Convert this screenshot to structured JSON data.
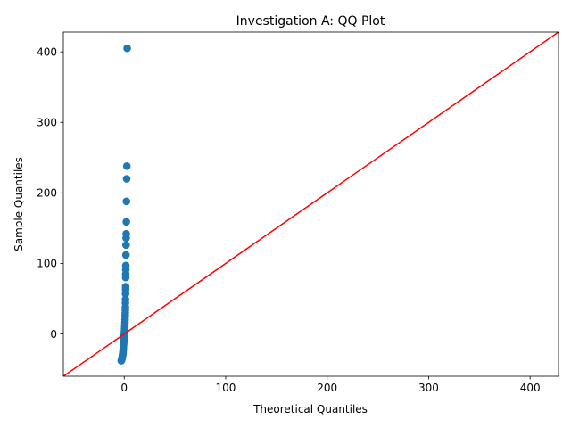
{
  "chart_data": {
    "type": "scatter",
    "title": "Investigation A: QQ Plot",
    "xlabel": "Theoretical Quantiles",
    "ylabel": "Sample Quantiles",
    "xlim": [
      -60,
      428
    ],
    "ylim": [
      -60,
      428
    ],
    "xticks": [
      0,
      100,
      200,
      300,
      400
    ],
    "yticks": [
      0,
      100,
      200,
      300,
      400
    ],
    "grid": false,
    "legend": "none",
    "marker_color": "#1f77b4",
    "reference_line": {
      "slope": 1,
      "intercept": 0,
      "color": "#ff0000"
    },
    "points": [
      {
        "x": 2.9,
        "y": 405
      },
      {
        "x": 2.6,
        "y": 238
      },
      {
        "x": 2.4,
        "y": 220
      },
      {
        "x": 2.2,
        "y": 188
      },
      {
        "x": 2.1,
        "y": 159
      },
      {
        "x": 2.0,
        "y": 142
      },
      {
        "x": 1.9,
        "y": 136
      },
      {
        "x": 1.8,
        "y": 126
      },
      {
        "x": 1.7,
        "y": 112
      },
      {
        "x": 1.6,
        "y": 97
      },
      {
        "x": 1.55,
        "y": 91
      },
      {
        "x": 1.5,
        "y": 85
      },
      {
        "x": 1.45,
        "y": 80
      },
      {
        "x": 1.4,
        "y": 67
      },
      {
        "x": 1.35,
        "y": 63
      },
      {
        "x": 1.3,
        "y": 57
      },
      {
        "x": 1.25,
        "y": 49
      },
      {
        "x": 1.2,
        "y": 44
      },
      {
        "x": 1.15,
        "y": 38
      },
      {
        "x": 1.1,
        "y": 34
      },
      {
        "x": 1.05,
        "y": 30
      },
      {
        "x": 1.0,
        "y": 27
      },
      {
        "x": 0.9,
        "y": 24
      },
      {
        "x": 0.8,
        "y": 20
      },
      {
        "x": 0.7,
        "y": 16
      },
      {
        "x": 0.6,
        "y": 13
      },
      {
        "x": 0.5,
        "y": 10
      },
      {
        "x": 0.4,
        "y": 7
      },
      {
        "x": 0.3,
        "y": 4
      },
      {
        "x": 0.2,
        "y": 2
      },
      {
        "x": 0.1,
        "y": 0
      },
      {
        "x": 0.0,
        "y": -2
      },
      {
        "x": -0.1,
        "y": -4
      },
      {
        "x": -0.2,
        "y": -6
      },
      {
        "x": -0.3,
        "y": -8
      },
      {
        "x": -0.4,
        "y": -10
      },
      {
        "x": -0.5,
        "y": -12
      },
      {
        "x": -0.6,
        "y": -14
      },
      {
        "x": -0.7,
        "y": -16
      },
      {
        "x": -0.8,
        "y": -18
      },
      {
        "x": -0.9,
        "y": -20
      },
      {
        "x": -1.0,
        "y": -22
      },
      {
        "x": -1.1,
        "y": -24
      },
      {
        "x": -1.2,
        "y": -26
      },
      {
        "x": -1.3,
        "y": -27
      },
      {
        "x": -1.4,
        "y": -28
      },
      {
        "x": -1.5,
        "y": -29
      },
      {
        "x": -1.6,
        "y": -30
      },
      {
        "x": -1.7,
        "y": -31
      },
      {
        "x": -1.8,
        "y": -32
      },
      {
        "x": -1.9,
        "y": -33
      },
      {
        "x": -2.0,
        "y": -34
      },
      {
        "x": -2.2,
        "y": -35
      },
      {
        "x": -2.4,
        "y": -36
      },
      {
        "x": -2.6,
        "y": -37
      },
      {
        "x": -2.9,
        "y": -38
      }
    ]
  }
}
